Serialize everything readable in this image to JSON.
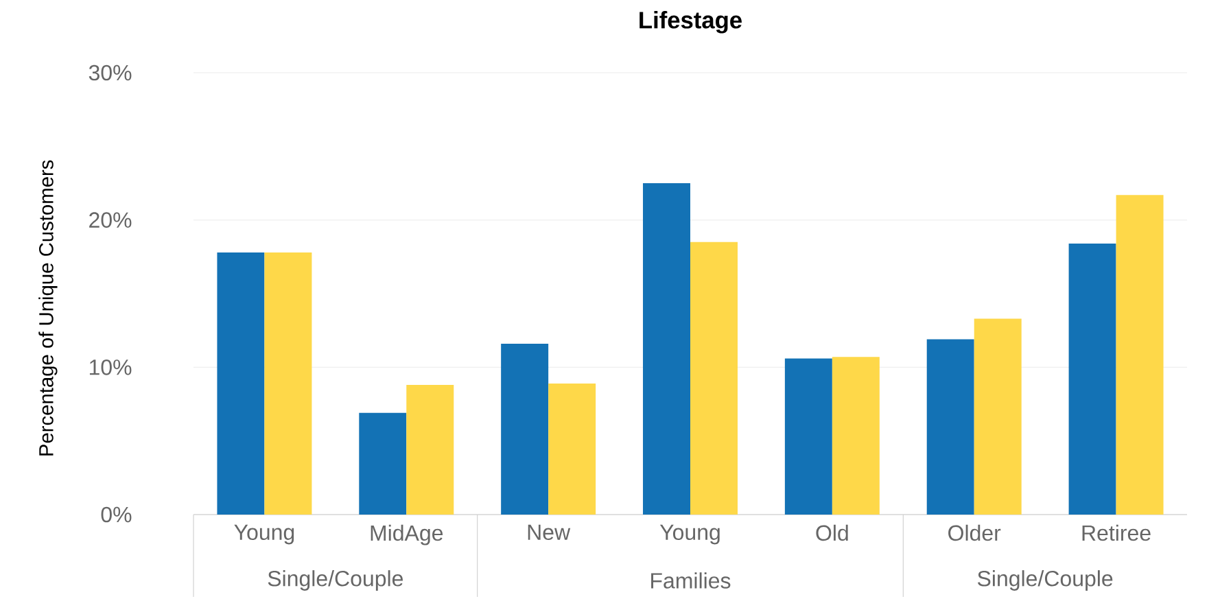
{
  "chart_data": {
    "type": "bar",
    "title": "Lifestage",
    "ylabel": "Percentage of Unique Customers",
    "categories": [
      "Young",
      "MidAge",
      "New",
      "Young",
      "Old",
      "Older",
      "Retiree"
    ],
    "series": [
      {
        "color": "#1372b5",
        "values": [
          17.8,
          6.9,
          11.6,
          22.5,
          10.6,
          11.9,
          18.4
        ]
      },
      {
        "color": "#fed849",
        "values": [
          17.8,
          8.8,
          8.9,
          18.5,
          10.7,
          13.3,
          21.7
        ]
      }
    ],
    "ylim": [
      0,
      30
    ],
    "yticks": [
      {
        "value": 0,
        "label": "0%"
      },
      {
        "value": 10,
        "label": "10%"
      },
      {
        "value": 20,
        "label": "20%"
      },
      {
        "value": 30,
        "label": "30%"
      }
    ],
    "grid": "y",
    "annotations": [
      "Single/Couple",
      "Families",
      "Single/Couple"
    ]
  }
}
